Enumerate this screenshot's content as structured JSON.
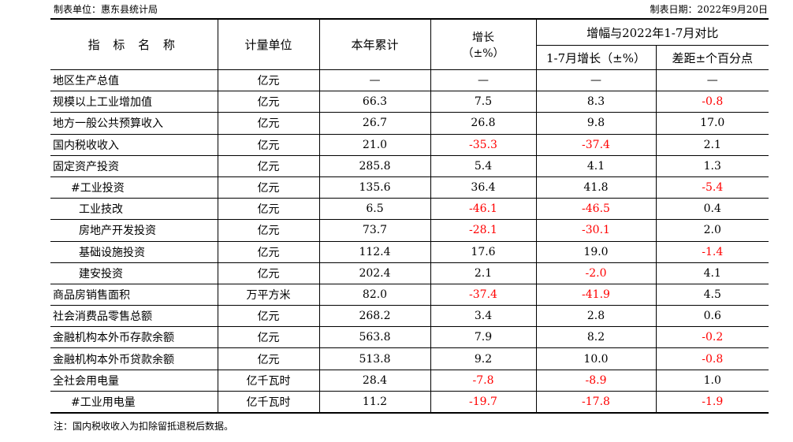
{
  "header": {
    "unit_label": "制表单位：惠东县统计局",
    "date_label": "制表日期：2022年9月20日"
  },
  "table": {
    "head": {
      "name": "指 标 名 称",
      "unit": "计量单位",
      "cumulative": "本年累计",
      "growth": "增长",
      "growth_unit": "（±%）",
      "compare": "增幅与2022年1-7月对比",
      "compare_growth": "1-7月增长（±%）",
      "compare_diff": "差距±个百分点"
    },
    "rows": [
      {
        "name": "地区生产总值",
        "indent": 0,
        "unit": "亿元",
        "cumulative": "—",
        "growth": "—",
        "growth_neg": false,
        "jul": "—",
        "jul_neg": false,
        "diff": "—",
        "diff_neg": false
      },
      {
        "name": "规模以上工业增加值",
        "indent": 0,
        "unit": "亿元",
        "cumulative": "66.3",
        "growth": "7.5",
        "growth_neg": false,
        "jul": "8.3",
        "jul_neg": false,
        "diff": "-0.8",
        "diff_neg": true
      },
      {
        "name": "地方一般公共预算收入",
        "indent": 0,
        "unit": "亿元",
        "cumulative": "26.7",
        "growth": "26.8",
        "growth_neg": false,
        "jul": "9.8",
        "jul_neg": false,
        "diff": "17.0",
        "diff_neg": false
      },
      {
        "name": "国内税收收入",
        "indent": 0,
        "unit": "亿元",
        "cumulative": "21.0",
        "growth": "-35.3",
        "growth_neg": true,
        "jul": "-37.4",
        "jul_neg": true,
        "diff": "2.1",
        "diff_neg": false
      },
      {
        "name": "固定资产投资",
        "indent": 0,
        "unit": "亿元",
        "cumulative": "285.8",
        "growth": "5.4",
        "growth_neg": false,
        "jul": "4.1",
        "jul_neg": false,
        "diff": "1.3",
        "diff_neg": false
      },
      {
        "name": "#工业投资",
        "indent": 1,
        "unit": "亿元",
        "cumulative": "135.6",
        "growth": "36.4",
        "growth_neg": false,
        "jul": "41.8",
        "jul_neg": false,
        "diff": "-5.4",
        "diff_neg": true
      },
      {
        "name": "工业技改",
        "indent": 2,
        "unit": "亿元",
        "cumulative": "6.5",
        "growth": "-46.1",
        "growth_neg": true,
        "jul": "-46.5",
        "jul_neg": true,
        "diff": "0.4",
        "diff_neg": false
      },
      {
        "name": "房地产开发投资",
        "indent": 2,
        "unit": "亿元",
        "cumulative": "73.7",
        "growth": "-28.1",
        "growth_neg": true,
        "jul": "-30.1",
        "jul_neg": true,
        "diff": "2.0",
        "diff_neg": false
      },
      {
        "name": "基础设施投资",
        "indent": 2,
        "unit": "亿元",
        "cumulative": "112.4",
        "growth": "17.6",
        "growth_neg": false,
        "jul": "19.0",
        "jul_neg": false,
        "diff": "-1.4",
        "diff_neg": true
      },
      {
        "name": "建安投资",
        "indent": 2,
        "unit": "亿元",
        "cumulative": "202.4",
        "growth": "2.1",
        "growth_neg": false,
        "jul": "-2.0",
        "jul_neg": true,
        "diff": "4.1",
        "diff_neg": false
      },
      {
        "name": "商品房销售面积",
        "indent": 0,
        "unit": "万平方米",
        "cumulative": "82.0",
        "growth": "-37.4",
        "growth_neg": true,
        "jul": "-41.9",
        "jul_neg": true,
        "diff": "4.5",
        "diff_neg": false
      },
      {
        "name": "社会消费品零售总额",
        "indent": 0,
        "unit": "亿元",
        "cumulative": "268.2",
        "growth": "3.4",
        "growth_neg": false,
        "jul": "2.8",
        "jul_neg": false,
        "diff": "0.6",
        "diff_neg": false
      },
      {
        "name": "金融机构本外币存款余额",
        "indent": 0,
        "unit": "亿元",
        "cumulative": "563.8",
        "growth": "7.9",
        "growth_neg": false,
        "jul": "8.2",
        "jul_neg": false,
        "diff": "-0.2",
        "diff_neg": true
      },
      {
        "name": "金融机构本外币贷款余额",
        "indent": 0,
        "unit": "亿元",
        "cumulative": "513.8",
        "growth": "9.2",
        "growth_neg": false,
        "jul": "10.0",
        "jul_neg": false,
        "diff": "-0.8",
        "diff_neg": true
      },
      {
        "name": "全社会用电量",
        "indent": 0,
        "unit": "亿千瓦时",
        "cumulative": "28.4",
        "growth": "-7.8",
        "growth_neg": true,
        "jul": "-8.9",
        "jul_neg": true,
        "diff": "1.0",
        "diff_neg": false
      },
      {
        "name": "#工业用电量",
        "indent": 1,
        "unit": "亿千瓦时",
        "cumulative": "11.2",
        "growth": "-19.7",
        "growth_neg": true,
        "jul": "-17.8",
        "jul_neg": true,
        "diff": "-1.9",
        "diff_neg": true
      }
    ]
  },
  "footnote": "注：国内税收收入为扣除留抵退税后数据。",
  "colors": {
    "negative": "#ff0000",
    "text": "#000000",
    "border": "#000000"
  }
}
